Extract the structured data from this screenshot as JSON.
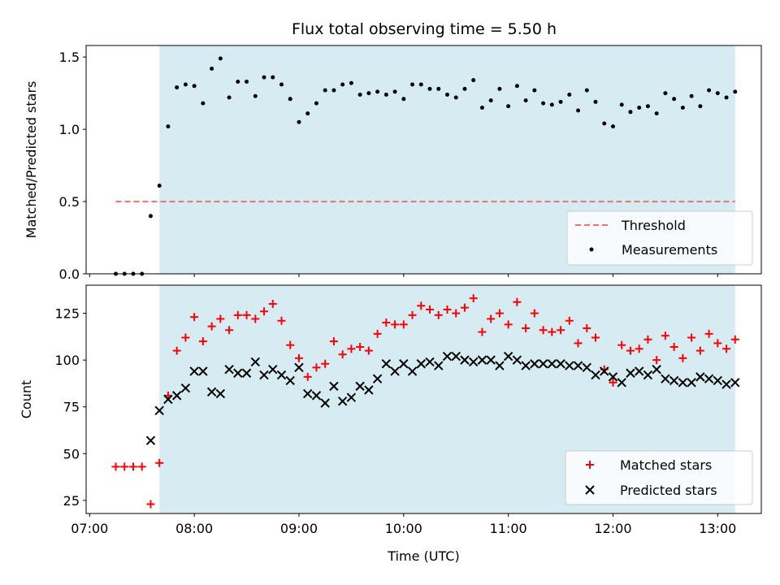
{
  "chart_data": [
    {
      "type": "scatter",
      "title": "Flux total observing time = 5.50 h",
      "ylabel": "Matched/Predicted stars",
      "ylim": [
        0,
        1.58
      ],
      "yticks": [
        0,
        0.5,
        1.0,
        1.5
      ],
      "ytick_labels": [
        "0.0",
        "0.5",
        "1.0",
        "1.5"
      ],
      "observing_window": [
        "07:40",
        "13:10"
      ],
      "observing_window_color": "#add8e6",
      "threshold": {
        "name": "Threshold",
        "value": 0.5,
        "x_range": [
          "07:15",
          "13:10"
        ],
        "color": "#f07070",
        "style": "dashed"
      },
      "series": [
        {
          "name": "Measurements",
          "marker": "dot",
          "color": "#000000",
          "x": [
            "07:15",
            "07:20",
            "07:25",
            "07:30",
            "07:35",
            "07:40",
            "07:45",
            "07:50",
            "07:55",
            "08:00",
            "08:05",
            "08:10",
            "08:15",
            "08:20",
            "08:25",
            "08:30",
            "08:35",
            "08:40",
            "08:45",
            "08:50",
            "08:55",
            "09:00",
            "09:05",
            "09:10",
            "09:15",
            "09:20",
            "09:25",
            "09:30",
            "09:35",
            "09:40",
            "09:45",
            "09:50",
            "09:55",
            "10:00",
            "10:05",
            "10:10",
            "10:15",
            "10:20",
            "10:25",
            "10:30",
            "10:35",
            "10:40",
            "10:45",
            "10:50",
            "10:55",
            "11:00",
            "11:05",
            "11:10",
            "11:15",
            "11:20",
            "11:25",
            "11:30",
            "11:35",
            "11:40",
            "11:45",
            "11:50",
            "11:55",
            "12:00",
            "12:05",
            "12:10",
            "12:15",
            "12:20",
            "12:25",
            "12:30",
            "12:35",
            "12:40",
            "12:45",
            "12:50",
            "12:55",
            "13:00",
            "13:05",
            "13:10"
          ],
          "y": [
            0.0,
            0.0,
            0.0,
            0.0,
            0.4,
            0.61,
            1.02,
            1.29,
            1.31,
            1.3,
            1.18,
            1.42,
            1.49,
            1.22,
            1.33,
            1.33,
            1.23,
            1.36,
            1.36,
            1.31,
            1.21,
            1.05,
            1.11,
            1.18,
            1.27,
            1.27,
            1.31,
            1.32,
            1.24,
            1.25,
            1.26,
            1.24,
            1.26,
            1.21,
            1.31,
            1.31,
            1.28,
            1.28,
            1.24,
            1.22,
            1.28,
            1.34,
            1.15,
            1.2,
            1.28,
            1.16,
            1.3,
            1.2,
            1.27,
            1.18,
            1.17,
            1.19,
            1.24,
            1.13,
            1.27,
            1.19,
            1.04,
            1.02,
            1.17,
            1.12,
            1.15,
            1.16,
            1.11,
            1.25,
            1.21,
            1.15,
            1.23,
            1.16,
            1.27,
            1.25,
            1.22,
            1.26
          ]
        }
      ],
      "legend": {
        "placement": "lower-right",
        "entries": [
          "Threshold",
          "Measurements"
        ]
      }
    },
    {
      "type": "scatter",
      "xlabel": "Time (UTC)",
      "ylabel": "Count",
      "ylim": [
        18,
        140
      ],
      "yticks": [
        25,
        50,
        75,
        100,
        125
      ],
      "xlim": [
        "06:58",
        "13:25"
      ],
      "xticks": [
        "07:00",
        "08:00",
        "09:00",
        "10:00",
        "11:00",
        "12:00",
        "13:00"
      ],
      "observing_window": [
        "07:40",
        "13:10"
      ],
      "observing_window_color": "#add8e6",
      "series": [
        {
          "name": "Matched stars",
          "marker": "plus",
          "color": "#ff0000",
          "x": [
            "07:15",
            "07:20",
            "07:25",
            "07:30",
            "07:35",
            "07:40",
            "07:45",
            "07:50",
            "07:55",
            "08:00",
            "08:05",
            "08:10",
            "08:15",
            "08:20",
            "08:25",
            "08:30",
            "08:35",
            "08:40",
            "08:45",
            "08:50",
            "08:55",
            "09:00",
            "09:05",
            "09:10",
            "09:15",
            "09:20",
            "09:25",
            "09:30",
            "09:35",
            "09:40",
            "09:45",
            "09:50",
            "09:55",
            "10:00",
            "10:05",
            "10:10",
            "10:15",
            "10:20",
            "10:25",
            "10:30",
            "10:35",
            "10:40",
            "10:45",
            "10:50",
            "10:55",
            "11:00",
            "11:05",
            "11:10",
            "11:15",
            "11:20",
            "11:25",
            "11:30",
            "11:35",
            "11:40",
            "11:45",
            "11:50",
            "11:55",
            "12:00",
            "12:05",
            "12:10",
            "12:15",
            "12:20",
            "12:25",
            "12:30",
            "12:35",
            "12:40",
            "12:45",
            "12:50",
            "12:55",
            "13:00",
            "13:05",
            "13:10"
          ],
          "y": [
            43,
            43,
            43,
            43,
            23,
            45,
            81,
            105,
            112,
            123,
            110,
            118,
            122,
            116,
            124,
            124,
            122,
            126,
            130,
            121,
            108,
            101,
            91,
            96,
            98,
            110,
            103,
            106,
            107,
            105,
            114,
            120,
            119,
            119,
            124,
            129,
            127,
            124,
            127,
            125,
            128,
            133,
            115,
            122,
            125,
            119,
            131,
            117,
            125,
            116,
            115,
            116,
            121,
            109,
            117,
            112,
            95,
            88,
            108,
            105,
            106,
            111,
            100,
            113,
            107,
            101,
            112,
            105,
            114,
            109,
            106,
            111
          ]
        },
        {
          "name": "Predicted stars",
          "marker": "x",
          "color": "#000000",
          "x": [
            "07:15",
            "07:20",
            "07:25",
            "07:30",
            "07:35",
            "07:40",
            "07:45",
            "07:50",
            "07:55",
            "08:00",
            "08:05",
            "08:10",
            "08:15",
            "08:20",
            "08:25",
            "08:30",
            "08:35",
            "08:40",
            "08:45",
            "08:50",
            "08:55",
            "09:00",
            "09:05",
            "09:10",
            "09:15",
            "09:20",
            "09:25",
            "09:30",
            "09:35",
            "09:40",
            "09:45",
            "09:50",
            "09:55",
            "10:00",
            "10:05",
            "10:10",
            "10:15",
            "10:20",
            "10:25",
            "10:30",
            "10:35",
            "10:40",
            "10:45",
            "10:50",
            "10:55",
            "11:00",
            "11:05",
            "11:10",
            "11:15",
            "11:20",
            "11:25",
            "11:30",
            "11:35",
            "11:40",
            "11:45",
            "11:50",
            "11:55",
            "12:00",
            "12:05",
            "12:10",
            "12:15",
            "12:20",
            "12:25",
            "12:30",
            "12:35",
            "12:40",
            "12:45",
            "12:50",
            "12:55",
            "13:00",
            "13:05",
            "13:10"
          ],
          "y": [
            null,
            null,
            null,
            null,
            57,
            73,
            79,
            81,
            85,
            94,
            94,
            83,
            82,
            95,
            93,
            93,
            99,
            92,
            95,
            92,
            89,
            96,
            82,
            81,
            77,
            86,
            78,
            80,
            86,
            84,
            90,
            98,
            94,
            98,
            94,
            98,
            99,
            97,
            102,
            102,
            100,
            99,
            100,
            100,
            97,
            102,
            100,
            97,
            98,
            98,
            98,
            98,
            97,
            97,
            96,
            92,
            94,
            91,
            88,
            93,
            94,
            92,
            95,
            90,
            89,
            88,
            88,
            91,
            90,
            89,
            87,
            88
          ]
        }
      ],
      "legend": {
        "placement": "lower-right",
        "entries": [
          "Matched stars",
          "Predicted stars"
        ]
      }
    }
  ]
}
